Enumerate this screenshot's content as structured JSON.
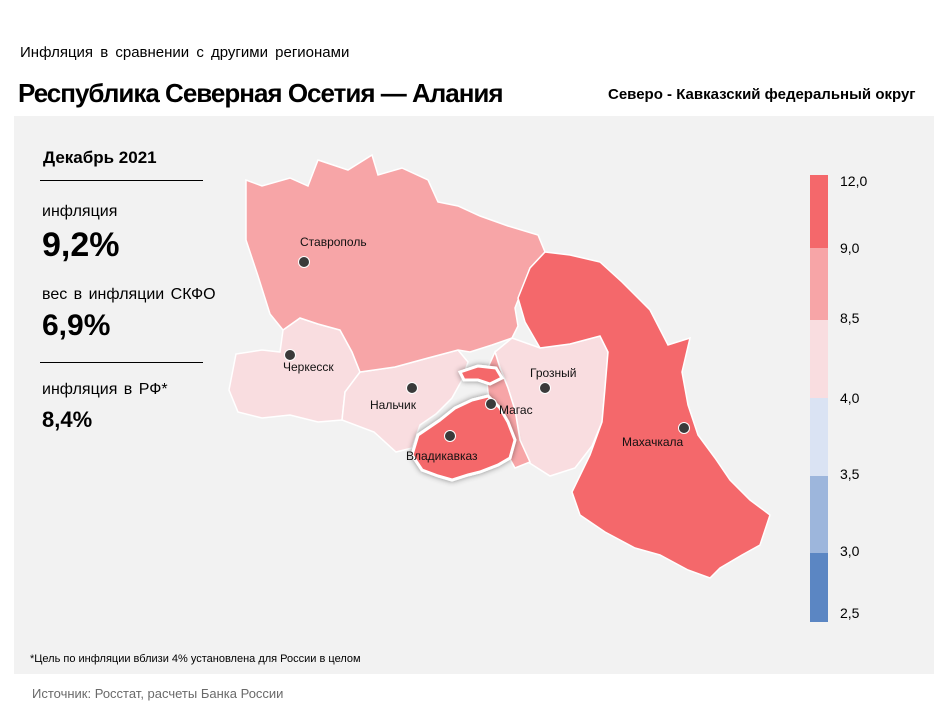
{
  "header": {
    "supertitle": "Инфляция в сравнении с другими регионами",
    "title": "Республика Северная Осетия — Алания",
    "district": "Северо - Кавказский федеральный округ"
  },
  "stats": {
    "period": "Декабрь 2021",
    "inflation_label": "инфляция",
    "inflation_value": "9,2%",
    "weight_label": "вес в инфляции СКФО",
    "weight_value": "6,9%",
    "rf_label": "инфляция в РФ*",
    "rf_value": "8,4%"
  },
  "map": {
    "highlighted_region": "Республика Северная Осетия — Алания",
    "cities": {
      "stavropol": "Ставрополь",
      "cherkessk": "Черкесск",
      "nalchik": "Нальчик",
      "vladikavkaz": "Владикавказ",
      "magas": "Магас",
      "grozny": "Грозный",
      "makhachkala": "Махачкала"
    },
    "colors": {
      "above_9": "#f4686b",
      "8_5_to_9": "#f7a5a7",
      "4_to_8_5": "#f9dde0",
      "3_5_to_4": "#dae3f3",
      "3_to_3_5": "#9db6dc",
      "2_5_to_3": "#5b86c3"
    }
  },
  "legend": {
    "ticks": [
      "12,0",
      "9,0",
      "8,5",
      "4,0",
      "3,5",
      "3,0",
      "2,5"
    ]
  },
  "footnote": "*Цель по инфляции вблизи 4% установлена для России в целом",
  "source": "Источник: Росстат, расчеты Банка России"
}
